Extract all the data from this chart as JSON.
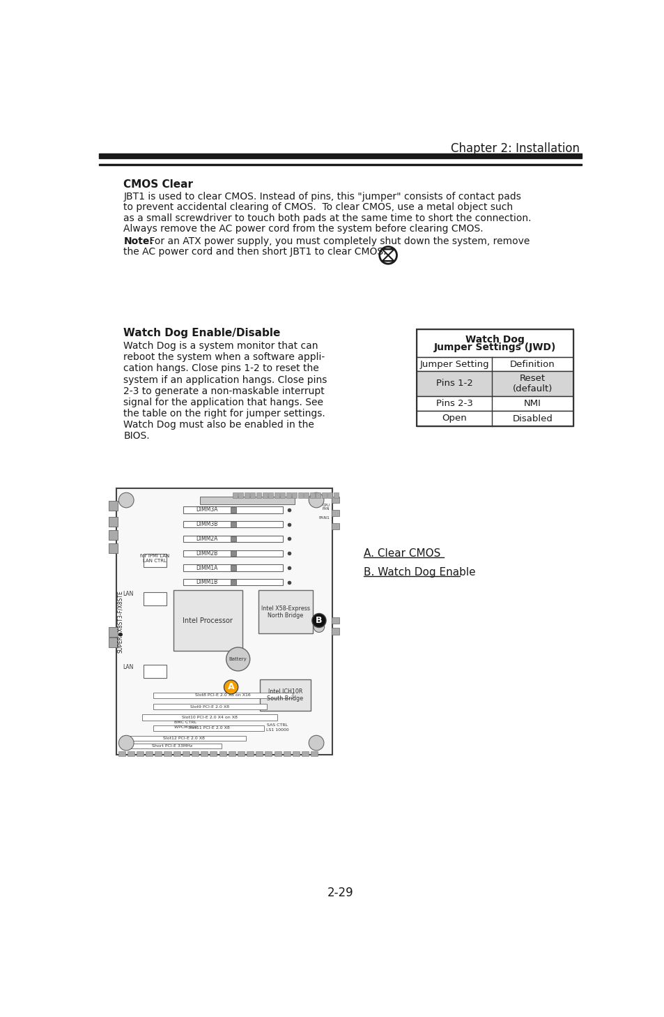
{
  "page_title": "Chapter 2: Installation",
  "page_number": "2-29",
  "bg_color": "#ffffff",
  "text_color": "#1a1a1a",
  "header_line_color": "#1a1a1a",
  "section1_title": "CMOS Clear",
  "body_lines": [
    "JBT1 is used to clear CMOS. Instead of pins, this \"jumper\" consists of contact pads",
    "to prevent accidental clearing of CMOS.  To clear CMOS, use a metal object such",
    "as a small screwdriver to touch both pads at the same time to short the connection.",
    "Always remove the AC power cord from the system before clearing CMOS."
  ],
  "note_bold": "Note:",
  "note_line1": " For an ATX power supply, you must completely shut down the system, remove",
  "note_line2": "the AC power cord and then short JBT1 to clear CMOS.",
  "section2_title": "Watch Dog Enable/Disable",
  "section2_body": [
    "Watch Dog is a system monitor that can",
    "reboot the system when a software appli-",
    "cation hangs. Close pins 1-2 to reset the",
    "system if an application hangs. Close pins",
    "2-3 to generate a non-maskable interrupt",
    "signal for the application that hangs. See",
    "the table on the right for jumper settings.",
    "Watch Dog must also be enabled in the",
    "BIOS."
  ],
  "table_title1": "Watch Dog",
  "table_title2": "Jumper Settings (JWD)",
  "table_col1": "Jumper Setting",
  "table_col2": "Definition",
  "table_rows": [
    [
      "Pins 1-2",
      "Reset\n(default)",
      true
    ],
    [
      "Pins 2-3",
      "NMI",
      false
    ],
    [
      "Open",
      "Disabled",
      false
    ]
  ],
  "sidebar_links": [
    "A. Clear CMOS",
    "B. Watch Dog Enable"
  ],
  "table_border": "#333333",
  "table_gray": "#d5d5d5",
  "dimm_labels": [
    "DIMM3A",
    "DIMM3B",
    "DIMM2A",
    "DIMM2B",
    "DIMM1A",
    "DIMM1B"
  ]
}
